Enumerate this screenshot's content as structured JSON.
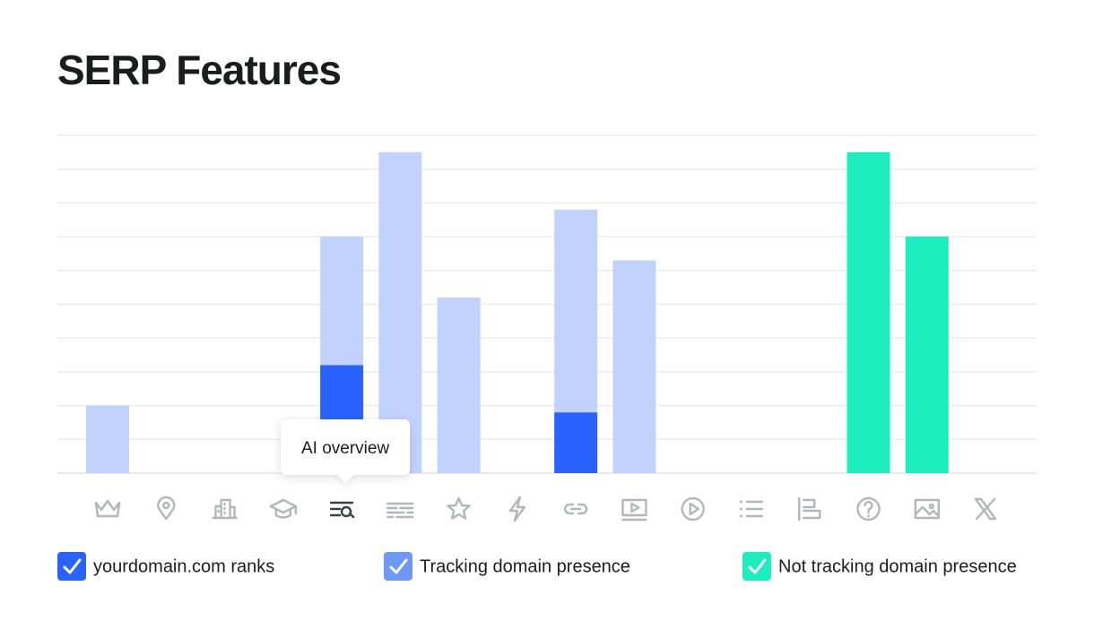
{
  "chart_data": {
    "type": "bar",
    "stacked": true,
    "title": "SERP Features",
    "categories": [
      null,
      null,
      null,
      null,
      null,
      null,
      null,
      null,
      null,
      null,
      null,
      null,
      null,
      null,
      null,
      null
    ],
    "series": [
      {
        "name": "yourdomain.com ranks",
        "color": "#2962ff",
        "legend_color": "#2962ff",
        "values": [
          null,
          null,
          null,
          null,
          3.2,
          null,
          null,
          null,
          1.8,
          null,
          null,
          null,
          null,
          null,
          null,
          null
        ]
      },
      {
        "name": "Tracking domain presence",
        "color": "#c1d3fd",
        "legend_color": "#6f97f6",
        "values": [
          2,
          null,
          null,
          null,
          3.8,
          9.5,
          5.2,
          null,
          6.0,
          6.3,
          null,
          null,
          null,
          null,
          null,
          null
        ]
      },
      {
        "name": "Not tracking domain presence",
        "color": "#1ceebf",
        "legend_color": "#1ceebf",
        "values": [
          null,
          null,
          null,
          null,
          null,
          null,
          null,
          null,
          null,
          null,
          null,
          null,
          null,
          9.5,
          7,
          null
        ]
      }
    ],
    "ylim": [
      0,
      10
    ],
    "yticks": [
      0,
      1,
      2,
      3,
      4,
      5,
      6,
      7,
      8,
      9,
      10
    ],
    "grid": true,
    "tooltip": {
      "text": "AI overview",
      "category": 4
    }
  }
}
